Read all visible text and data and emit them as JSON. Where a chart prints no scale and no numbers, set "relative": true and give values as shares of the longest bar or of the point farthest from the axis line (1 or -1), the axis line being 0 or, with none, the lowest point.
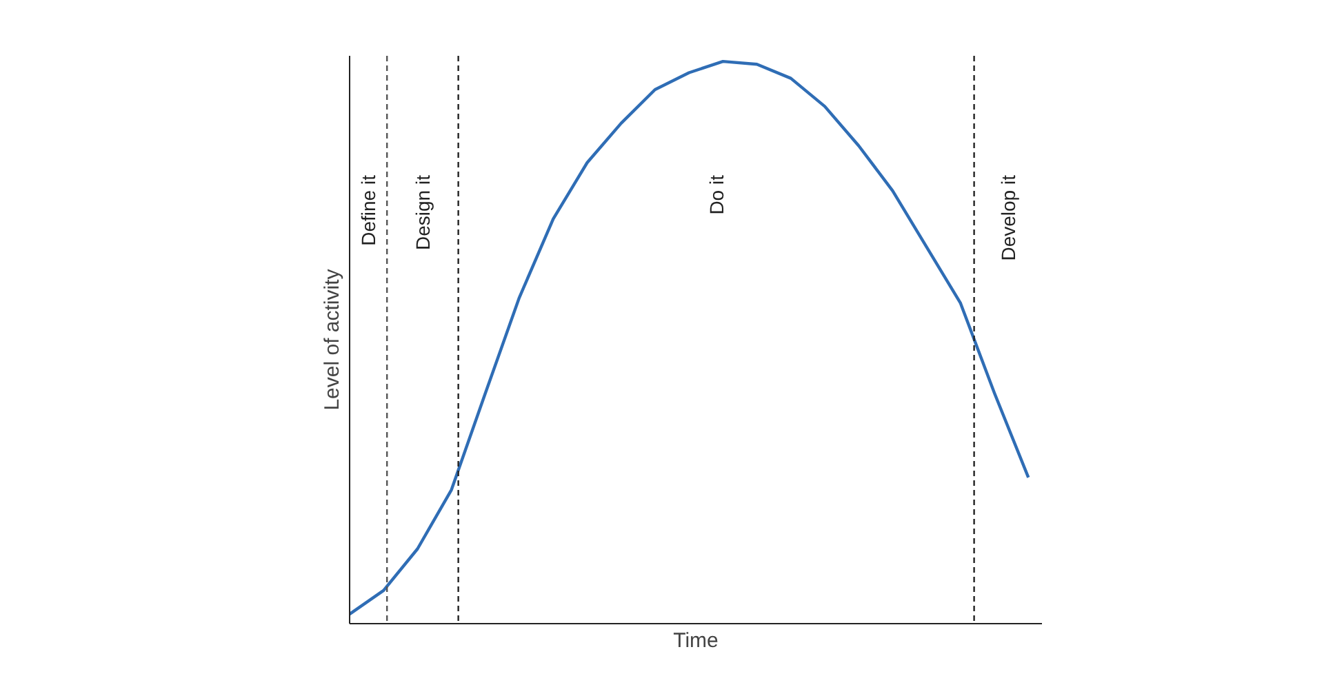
{
  "chart_data": {
    "type": "line",
    "relative": true,
    "xlabel": "Time",
    "ylabel": "Level of activity",
    "categories": [
      null,
      null,
      null,
      null,
      null,
      null,
      null,
      null,
      null,
      null,
      null,
      null,
      null,
      null,
      null,
      null,
      null,
      null,
      null,
      null,
      null
    ],
    "series": [
      {
        "color": "#2f6db5",
        "values": [
          0.017,
          0.059,
          0.133,
          0.238,
          0.41,
          0.58,
          0.72,
          0.82,
          0.89,
          0.95,
          0.98,
          1.0,
          0.995,
          0.97,
          0.92,
          0.85,
          0.77,
          0.67,
          0.57,
          0.41,
          0.26
        ]
      }
    ],
    "marker": "none",
    "line_style": "solid",
    "annotations": [
      "Define it",
      "Design it",
      "Do it",
      "Develop it"
    ]
  }
}
